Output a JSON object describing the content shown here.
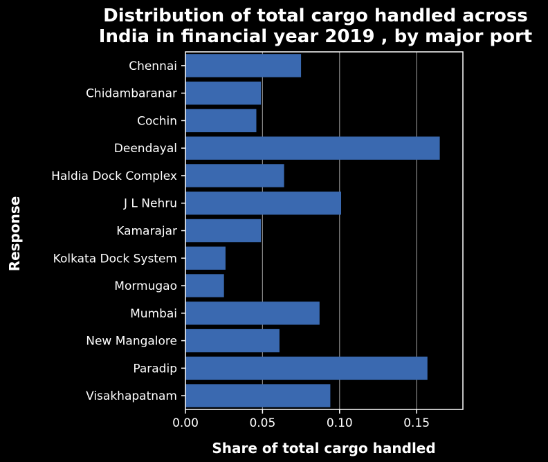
{
  "chart_data": {
    "type": "bar",
    "orientation": "horizontal",
    "title_lines": [
      "Distribution of total cargo handled across",
      "India in financial year 2019 , by major port"
    ],
    "xlabel": "Share of total cargo handled",
    "ylabel": "Response",
    "xlim": [
      0,
      0.18
    ],
    "xticks": [
      {
        "value": 0.0,
        "label": "0.00"
      },
      {
        "value": 0.05,
        "label": "0.05"
      },
      {
        "value": 0.1,
        "label": "0.10"
      },
      {
        "value": 0.15,
        "label": "0.15"
      }
    ],
    "grid": "vertical",
    "bar_color": "#3a69b0",
    "categories": [
      "Chennai",
      "Chidambaranar",
      "Cochin",
      "Deendayal",
      "Haldia Dock Complex",
      "J L Nehru",
      "Kamarajar",
      "Kolkata Dock System",
      "Mormugao",
      "Mumbai",
      "New Mangalore",
      "Paradip",
      "Visakhapatnam"
    ],
    "values": [
      0.075,
      0.049,
      0.046,
      0.165,
      0.064,
      0.101,
      0.049,
      0.026,
      0.025,
      0.087,
      0.061,
      0.157,
      0.094
    ]
  }
}
